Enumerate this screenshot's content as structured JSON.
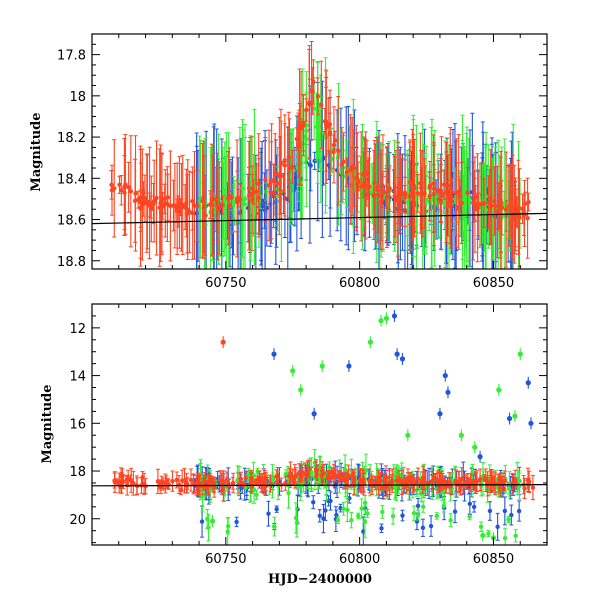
{
  "chart_data": [
    {
      "type": "scatter",
      "panel": "top",
      "xlim": [
        60700,
        60870
      ],
      "ylim": [
        18.84,
        17.7
      ],
      "y_inverted": true,
      "x_ticks": [
        60750,
        60800,
        60850
      ],
      "y_ticks": [
        17.8,
        18,
        18.2,
        18.4,
        18.6,
        18.8
      ],
      "ylabel": "Magnitude",
      "xlabel": "",
      "grid": false,
      "series": [
        {
          "color": "#2255dd",
          "approx_points": [
            [
              60738,
              18.55
            ],
            [
              60746,
              18.5
            ],
            [
              60752,
              18.6
            ],
            [
              60760,
              18.55
            ],
            [
              60770,
              18.5
            ],
            [
              60778,
              18.4
            ],
            [
              60783,
              18.3
            ],
            [
              60790,
              18.35
            ],
            [
              60800,
              18.45
            ],
            [
              60810,
              18.5
            ],
            [
              60820,
              18.55
            ],
            [
              60830,
              18.52
            ],
            [
              60840,
              18.5
            ],
            [
              60850,
              18.55
            ],
            [
              60860,
              18.58
            ]
          ]
        },
        {
          "color": "#33ee33",
          "approx_points": [
            [
              60740,
              18.55
            ],
            [
              60750,
              18.52
            ],
            [
              60760,
              18.5
            ],
            [
              60770,
              18.45
            ],
            [
              60778,
              18.3
            ],
            [
              60782,
              18.05
            ],
            [
              60790,
              18.3
            ],
            [
              60800,
              18.45
            ],
            [
              60810,
              18.48
            ],
            [
              60820,
              18.5
            ],
            [
              60830,
              18.52
            ],
            [
              60840,
              18.5
            ],
            [
              60850,
              18.55
            ],
            [
              60860,
              18.55
            ]
          ]
        },
        {
          "color": "#ff4422",
          "approx_points": [
            [
              60707,
              18.45
            ],
            [
              60712,
              18.42
            ],
            [
              60715,
              18.5
            ],
            [
              60727,
              18.52
            ],
            [
              60735,
              18.55
            ],
            [
              60745,
              18.52
            ],
            [
              60755,
              18.5
            ],
            [
              60765,
              18.45
            ],
            [
              60775,
              18.3
            ],
            [
              60783,
              17.95
            ],
            [
              60788,
              18.15
            ],
            [
              60795,
              18.35
            ],
            [
              60805,
              18.45
            ],
            [
              60815,
              18.48
            ],
            [
              60825,
              18.45
            ],
            [
              60835,
              18.48
            ],
            [
              60845,
              18.52
            ],
            [
              60855,
              18.55
            ],
            [
              60865,
              18.55
            ]
          ]
        }
      ],
      "fit_line": {
        "color": "#000000",
        "from": [
          60700,
          18.62
        ],
        "to": [
          60870,
          18.57
        ]
      }
    },
    {
      "type": "scatter",
      "panel": "bottom",
      "xlim": [
        60700,
        60870
      ],
      "ylim": [
        21.1,
        11.0
      ],
      "y_inverted": true,
      "x_ticks": [
        60750,
        60800,
        60850
      ],
      "y_ticks": [
        12,
        14,
        16,
        18,
        20
      ],
      "xlabel": "HJD−2400000",
      "ylabel": "Magnitude",
      "grid": false,
      "outliers": [
        {
          "color": "#ff4422",
          "x": 60749,
          "y": 12.6
        },
        {
          "color": "#2255dd",
          "x": 60768,
          "y": 13.1
        },
        {
          "color": "#33ee33",
          "x": 60775,
          "y": 13.8
        },
        {
          "color": "#33ee33",
          "x": 60778,
          "y": 14.6
        },
        {
          "color": "#33ee33",
          "x": 60786,
          "y": 13.6
        },
        {
          "color": "#2255dd",
          "x": 60783,
          "y": 15.6
        },
        {
          "color": "#2255dd",
          "x": 60796,
          "y": 13.6
        },
        {
          "color": "#33ee33",
          "x": 60804,
          "y": 12.6
        },
        {
          "color": "#33ee33",
          "x": 60808,
          "y": 11.7
        },
        {
          "color": "#33ee33",
          "x": 60810,
          "y": 11.6
        },
        {
          "color": "#2255dd",
          "x": 60813,
          "y": 11.5
        },
        {
          "color": "#2255dd",
          "x": 60814,
          "y": 13.1
        },
        {
          "color": "#2255dd",
          "x": 60816,
          "y": 13.3
        },
        {
          "color": "#33ee33",
          "x": 60818,
          "y": 16.5
        },
        {
          "color": "#2255dd",
          "x": 60830,
          "y": 15.6
        },
        {
          "color": "#2255dd",
          "x": 60832,
          "y": 14.0
        },
        {
          "color": "#2255dd",
          "x": 60833,
          "y": 14.7
        },
        {
          "color": "#33ee33",
          "x": 60838,
          "y": 16.5
        },
        {
          "color": "#33ee33",
          "x": 60843,
          "y": 17.0
        },
        {
          "color": "#2255dd",
          "x": 60845,
          "y": 17.4
        },
        {
          "color": "#33ee33",
          "x": 60852,
          "y": 14.6
        },
        {
          "color": "#2255dd",
          "x": 60856,
          "y": 15.8
        },
        {
          "color": "#33ee33",
          "x": 60858,
          "y": 15.7
        },
        {
          "color": "#33ee33",
          "x": 60860,
          "y": 13.1
        },
        {
          "color": "#2255dd",
          "x": 60863,
          "y": 14.3
        },
        {
          "color": "#2255dd",
          "x": 60864,
          "y": 16.0
        },
        {
          "color": "#33ee33",
          "x": 60846,
          "y": 20.7
        },
        {
          "color": "#33ee33",
          "x": 60850,
          "y": 20.8
        },
        {
          "color": "#33ee33",
          "x": 60745,
          "y": 20.1
        }
      ],
      "fit_line": {
        "color": "#000000",
        "from": [
          60700,
          18.62
        ],
        "to": [
          60870,
          18.57
        ]
      }
    }
  ]
}
